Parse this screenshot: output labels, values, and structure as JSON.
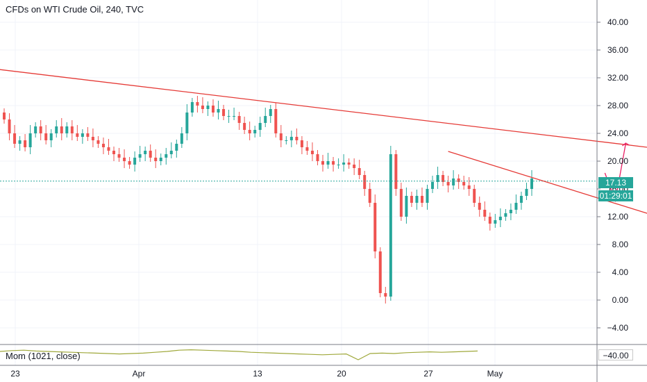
{
  "header": {
    "title": "CFDs on WTI Crude Oil, 240, TVC"
  },
  "indicator": {
    "label": "Mom (1021, close)",
    "value_label": "−40.00",
    "color": "#9fa83a"
  },
  "last_price": {
    "value": "17.13",
    "countdown": "01:29:01",
    "color": "#26a69a"
  },
  "colors": {
    "up": "#26a69a",
    "down": "#ef5350",
    "trendline": "#e53935"
  },
  "chart_data": {
    "type": "candlestick",
    "title": "CFDs on WTI Crude Oil, 240, TVC",
    "y_axis": {
      "ticks": [
        "40.00",
        "36.00",
        "32.00",
        "28.00",
        "24.00",
        "20.00",
        "16.00",
        "12.00",
        "8.00",
        "4.00",
        "0.00",
        "−4.00"
      ],
      "ylim": [
        -6.4,
        43.2
      ]
    },
    "x_axis": {
      "labels": [
        "23",
        "Apr",
        "13",
        "20",
        "27",
        "May"
      ]
    },
    "closes": [
      26,
      24,
      22.5,
      23,
      22,
      24,
      25,
      24,
      23,
      24,
      25,
      24,
      25,
      24,
      23.5,
      24,
      23.5,
      23,
      22.5,
      22,
      21.5,
      21,
      20.5,
      20,
      19.5,
      20.5,
      21,
      21.5,
      20.5,
      20,
      20.5,
      21,
      21.5,
      22.5,
      24,
      27,
      28.5,
      28,
      27.5,
      28,
      27,
      27.5,
      26.5,
      26.5,
      26.5,
      25.5,
      24.5,
      24,
      24.5,
      25.5,
      26.5,
      27.5,
      24,
      23,
      23,
      23.5,
      23,
      22,
      21.5,
      21,
      20,
      19.5,
      20,
      19.5,
      19.5,
      19.8,
      19.5,
      19,
      18,
      16,
      14,
      7,
      1,
      0.5,
      21,
      16,
      12,
      15,
      14,
      15,
      14,
      16,
      17,
      18,
      17,
      16.5,
      17.5,
      17,
      16.5,
      16,
      14,
      13,
      12,
      11,
      11.5,
      12,
      12.5,
      13,
      14,
      15,
      16,
      17.5
    ],
    "trendlines": [
      {
        "from": [
          -1,
          33.2
        ],
        "to": [
          143,
          20.2
        ]
      },
      {
        "from": [
          85,
          21.4
        ],
        "to": [
          126,
          11.8
        ]
      }
    ],
    "projection": [
      [
        115,
        18.3
      ],
      [
        117,
        14.3
      ],
      [
        119,
        22.6
      ]
    ],
    "projection_color": "#e91e63",
    "last_value": 17.13,
    "indicator_series": [
      0,
      2,
      3,
      1,
      0,
      -1,
      -2,
      -3,
      -4,
      -5,
      -6,
      -5,
      -4,
      -2,
      0,
      3,
      4,
      3,
      2,
      1,
      0,
      -2,
      -3,
      -4,
      -5,
      -6,
      -7,
      -8,
      -7,
      -6,
      -20,
      -5,
      -4,
      -5,
      -3,
      -2,
      -1,
      -2,
      -1,
      0,
      1
    ],
    "indicator_ylim": [
      -30,
      10
    ]
  }
}
